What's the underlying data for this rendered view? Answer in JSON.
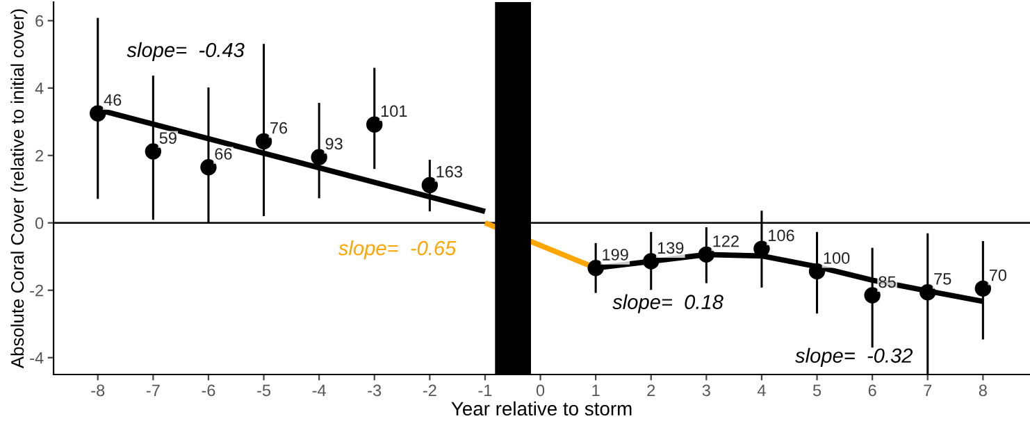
{
  "chart_data": {
    "type": "scatter",
    "xlabel": "Year relative to storm",
    "ylabel": "Absolute Coral Cover (relative to initial cover)",
    "xlim": [
      -8.8,
      8.85
    ],
    "ylim": [
      -4.5,
      6.55
    ],
    "xticks": [
      -8,
      -7,
      -6,
      -5,
      -4,
      -3,
      -2,
      -1,
      0,
      1,
      2,
      3,
      4,
      5,
      6,
      7,
      8
    ],
    "yticks": [
      -4,
      -2,
      0,
      2,
      4,
      6
    ],
    "grid": false,
    "legend": false,
    "ref_lines": [
      {
        "axis": "y",
        "value": 0,
        "color": "#000000"
      }
    ],
    "bands": [
      {
        "axis": "x",
        "from": -0.82,
        "to": -0.17,
        "color": "#000000"
      }
    ],
    "annotations": [
      {
        "text": "46",
        "x": -8,
        "y": 3.25
      },
      {
        "text": "59",
        "x": -7,
        "y": 2.12
      },
      {
        "text": "66",
        "x": -6,
        "y": 1.65
      },
      {
        "text": "76",
        "x": -5,
        "y": 2.42
      },
      {
        "text": "93",
        "x": -4,
        "y": 1.95
      },
      {
        "text": "101",
        "x": -3,
        "y": 2.92
      },
      {
        "text": "163",
        "x": -2,
        "y": 1.12
      },
      {
        "text": "199",
        "x": 1,
        "y": -1.34
      },
      {
        "text": "139",
        "x": 2,
        "y": -1.14
      },
      {
        "text": "122",
        "x": 3,
        "y": -0.94
      },
      {
        "text": "106",
        "x": 4,
        "y": -0.77
      },
      {
        "text": "100",
        "x": 5,
        "y": -1.44
      },
      {
        "text": "85",
        "x": 6,
        "y": -2.15
      },
      {
        "text": "75",
        "x": 7,
        "y": -2.06
      },
      {
        "text": "70",
        "x": 8,
        "y": -1.95
      }
    ],
    "series": [
      {
        "marker": "circle",
        "color": "#000000",
        "x": [
          -8,
          -7,
          -6,
          -5,
          -4,
          -3,
          -2,
          1,
          2,
          3,
          4,
          5,
          6,
          7,
          8
        ],
        "values": [
          3.25,
          2.12,
          1.65,
          2.42,
          1.95,
          2.92,
          1.12,
          -1.34,
          -1.14,
          -0.94,
          -0.77,
          -1.44,
          -2.15,
          -2.06,
          -1.95
        ],
        "errors": [
          [
            0.71,
            6.08
          ],
          [
            0.09,
            4.37
          ],
          [
            0.0,
            4.02
          ],
          [
            0.2,
            5.31
          ],
          [
            0.73,
            3.56
          ],
          [
            1.6,
            4.6
          ],
          [
            0.34,
            1.87
          ],
          [
            -2.08,
            -0.6
          ],
          [
            -1.99,
            -0.27
          ],
          [
            -1.79,
            -0.13
          ],
          [
            -1.92,
            0.36
          ],
          [
            -2.69,
            -0.27
          ],
          [
            -3.7,
            -0.74
          ],
          [
            -4.5,
            -0.31
          ],
          [
            -3.46,
            -0.54
          ]
        ]
      },
      {
        "type": "line",
        "marker": "none",
        "name": "slope=  -0.43",
        "color": "#000000",
        "x": [
          -8,
          -1
        ],
        "values": [
          3.36,
          0.34
        ]
      },
      {
        "type": "line",
        "marker": "none",
        "name": "slope=  -0.65",
        "color": "#ffa500",
        "x": [
          -1,
          1
        ],
        "values": [
          0.0,
          -1.34
        ]
      },
      {
        "type": "line",
        "marker": "none",
        "name": "slope=  0.18",
        "color": "#000000",
        "x": [
          1,
          2,
          3,
          4
        ],
        "values": [
          -1.34,
          -1.14,
          -0.94,
          -0.98
        ]
      },
      {
        "type": "line",
        "marker": "none",
        "name": "slope=  -0.32",
        "color": "#000000",
        "x": [
          4,
          5,
          6,
          7,
          8
        ],
        "values": [
          -0.98,
          -1.3,
          -1.7,
          -2.02,
          -2.33
        ]
      }
    ]
  }
}
